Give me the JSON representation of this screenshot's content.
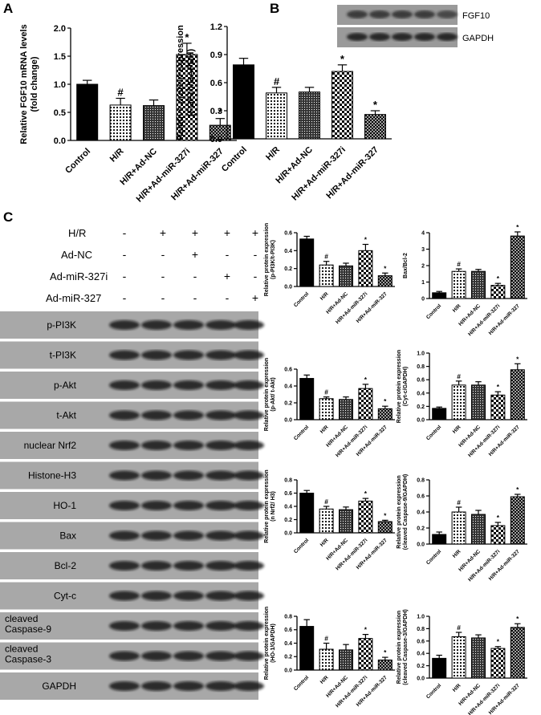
{
  "panel_labels": [
    "A",
    "B",
    "C"
  ],
  "blot_b": {
    "rows": [
      "FGF10",
      "GAPDH"
    ]
  },
  "blot_c": {
    "treatments": [
      {
        "name": "H/R",
        "signs": [
          "-",
          "+",
          "+",
          "+",
          "+"
        ]
      },
      {
        "name": "Ad-NC",
        "signs": [
          "-",
          "-",
          "+",
          "-",
          "-"
        ]
      },
      {
        "name": "Ad-miR-327i",
        "signs": [
          "-",
          "-",
          "-",
          "+",
          "-"
        ]
      },
      {
        "name": "Ad-miR-327",
        "signs": [
          "-",
          "-",
          "-",
          "-",
          "+"
        ]
      }
    ],
    "rows": [
      "p-PI3K",
      "t-PI3K",
      "p-Akt",
      "t-Akt",
      "nuclear Nrf2",
      "Histone-H3",
      "HO-1",
      "Bax",
      "Bcl-2",
      "Cyt-c",
      "cleaved\nCaspase-9",
      "cleaved\nCaspase-3",
      "GAPDH"
    ]
  },
  "chart_data": [
    {
      "type": "bar",
      "ylabel": [
        "Relative FGF10 mRNA levels",
        "(fold change)"
      ],
      "categories": [
        "Control",
        "H/R",
        "H/R+Ad-NC",
        "H/R+Ad-miR-327i",
        "H/R+Ad-miR-327"
      ],
      "values": [
        1.0,
        0.63,
        0.62,
        1.53,
        0.27
      ],
      "errors": [
        0.07,
        0.12,
        0.1,
        0.2,
        0.12
      ],
      "annotations": [
        null,
        "#",
        null,
        "*",
        "*"
      ],
      "fills": [
        "solid",
        "dots",
        "dense-dots",
        "grid",
        "dense-grid"
      ],
      "ylim": [
        0,
        2.0
      ],
      "yticks": [
        {
          "value": 0,
          "label": "0.0"
        },
        0.5,
        {
          "value": 1,
          "label": "1.0"
        },
        1.5,
        {
          "value": 2,
          "label": "2.0"
        }
      ]
    },
    {
      "type": "bar",
      "ylabel": [
        "Relative protein expression",
        "(FGF10/GAPDH)"
      ],
      "categories": [
        "Control",
        "H/R",
        "H/R+Ad-NC",
        "H/R+Ad-miR-327i",
        "H/R+Ad-miR-327"
      ],
      "values": [
        0.79,
        0.49,
        0.5,
        0.72,
        0.26
      ],
      "errors": [
        0.07,
        0.06,
        0.05,
        0.07,
        0.04
      ],
      "annotations": [
        null,
        "#",
        null,
        "*",
        "*"
      ],
      "fills": [
        "solid",
        "dots",
        "dense-dots",
        "grid",
        "dense-grid"
      ],
      "ylim": [
        0,
        1.2
      ],
      "yticks": [
        {
          "value": 0,
          "label": "0.0"
        },
        0.3,
        0.6,
        0.9,
        1.2
      ]
    },
    {
      "type": "bar",
      "ylabel": [
        "Relative protein expression",
        "(p-PI3K/t-PI3K)"
      ],
      "categories": [
        "Control",
        "H/R",
        "H/R+Ad-NC",
        "H/R+Ad-miR-327i",
        "H/R+Ad-miR-327"
      ],
      "values": [
        0.53,
        0.24,
        0.23,
        0.4,
        0.12
      ],
      "errors": [
        0.03,
        0.04,
        0.03,
        0.07,
        0.03
      ],
      "annotations": [
        null,
        "#",
        null,
        "*",
        "*"
      ],
      "fills": [
        "solid",
        "dots",
        "dense-dots",
        "grid",
        "dense-grid"
      ],
      "ylim": [
        0,
        0.6
      ],
      "yticks": [
        {
          "value": 0,
          "label": "0.0"
        },
        0.2,
        0.4,
        0.6
      ]
    },
    {
      "type": "bar",
      "ylabel": [
        "Bax/Bcl-2"
      ],
      "categories": [
        "Control",
        "H/R",
        "H/R+Ad-NC",
        "H/R+Ad-miR-327i",
        "H/R+Ad-miR-327"
      ],
      "values": [
        0.35,
        1.65,
        1.65,
        0.8,
        3.8
      ],
      "errors": [
        0.08,
        0.15,
        0.12,
        0.12,
        0.25
      ],
      "annotations": [
        null,
        "#",
        null,
        "*",
        "*"
      ],
      "fills": [
        "solid",
        "dots",
        "dense-dots",
        "grid",
        "dense-grid"
      ],
      "ylim": [
        0,
        4
      ],
      "yticks": [
        0,
        1,
        2,
        3,
        4
      ]
    },
    {
      "type": "bar",
      "ylabel": [
        "Relative protein expression",
        "(p-Akt/ t-Akt)"
      ],
      "categories": [
        "Control",
        "H/R",
        "H/R+Ad-NC",
        "H/R+Ad-miR-327i",
        "H/R+Ad-miR-327"
      ],
      "values": [
        0.49,
        0.25,
        0.24,
        0.37,
        0.13
      ],
      "errors": [
        0.04,
        0.02,
        0.03,
        0.05,
        0.03
      ],
      "annotations": [
        null,
        "#",
        null,
        "*",
        "*"
      ],
      "fills": [
        "solid",
        "dots",
        "dense-dots",
        "grid",
        "dense-grid"
      ],
      "ylim": [
        0,
        0.6
      ],
      "yticks": [
        {
          "value": 0,
          "label": "0.0"
        },
        0.2,
        0.4,
        0.6
      ]
    },
    {
      "type": "bar",
      "ylabel": [
        "Relative protein expression",
        "(Cyt-c/GAPDH)"
      ],
      "categories": [
        "Control",
        "H/R",
        "H/R+Ad-NC",
        "H/R+Ad-miR-327i",
        "H/R+Ad-miR-327"
      ],
      "values": [
        0.17,
        0.52,
        0.52,
        0.37,
        0.75
      ],
      "errors": [
        0.02,
        0.06,
        0.05,
        0.05,
        0.09
      ],
      "annotations": [
        null,
        "#",
        null,
        "*",
        "*"
      ],
      "fills": [
        "solid",
        "dots",
        "dense-dots",
        "grid",
        "dense-grid"
      ],
      "ylim": [
        0,
        1.0
      ],
      "yticks": [
        {
          "value": 0,
          "label": "0.0"
        },
        0.2,
        0.4,
        0.6,
        0.8,
        {
          "value": 1,
          "label": "1.0"
        }
      ]
    },
    {
      "type": "bar",
      "ylabel": [
        "Relative protein expression",
        "(n Nrf2/ H3)"
      ],
      "categories": [
        "Control",
        "H/R",
        "H/R+Ad-NC",
        "H/R+Ad-miR-327i",
        "H/R+Ad-miR-327"
      ],
      "values": [
        0.6,
        0.36,
        0.35,
        0.48,
        0.17
      ],
      "errors": [
        0.04,
        0.04,
        0.04,
        0.04,
        0.02
      ],
      "annotations": [
        null,
        "#",
        null,
        "*",
        "*"
      ],
      "fills": [
        "solid",
        "dots",
        "dense-dots",
        "grid",
        "dense-grid"
      ],
      "ylim": [
        0,
        0.8
      ],
      "yticks": [
        {
          "value": 0,
          "label": "0.0"
        },
        0.2,
        0.4,
        0.6,
        0.8
      ]
    },
    {
      "type": "bar",
      "ylabel": [
        "Relative protein expression",
        "(cleaved Caspase-9/GAPDH)"
      ],
      "categories": [
        "Control",
        "H/R",
        "H/R+Ad-NC",
        "H/R+Ad-miR-327i",
        "H/R+Ad-miR-327"
      ],
      "values": [
        0.12,
        0.4,
        0.37,
        0.23,
        0.59
      ],
      "errors": [
        0.03,
        0.06,
        0.05,
        0.04,
        0.03
      ],
      "annotations": [
        null,
        "#",
        null,
        "*",
        "*"
      ],
      "fills": [
        "solid",
        "dots",
        "dense-dots",
        "grid",
        "dense-grid"
      ],
      "ylim": [
        0,
        0.8
      ],
      "yticks": [
        {
          "value": 0,
          "label": "0.0"
        },
        0.2,
        0.4,
        0.6,
        0.8
      ]
    },
    {
      "type": "bar",
      "ylabel": [
        "Relative protein expression",
        "(HO-1/GAPDH)"
      ],
      "categories": [
        "Control",
        "H/R",
        "H/R+Ad-NC",
        "H/R+Ad-miR-327i",
        "H/R+Ad-miR-327"
      ],
      "values": [
        0.65,
        0.31,
        0.3,
        0.47,
        0.15
      ],
      "errors": [
        0.1,
        0.09,
        0.08,
        0.06,
        0.04
      ],
      "annotations": [
        null,
        "#",
        null,
        "*",
        "*"
      ],
      "fills": [
        "solid",
        "dots",
        "dense-dots",
        "grid",
        "dense-grid"
      ],
      "ylim": [
        0,
        0.8
      ],
      "yticks": [
        {
          "value": 0,
          "label": "0.0"
        },
        0.2,
        0.4,
        0.6,
        0.8
      ]
    },
    {
      "type": "bar",
      "ylabel": [
        "Relative protein expression",
        "(cleaved Caspase-3/GAPDH)"
      ],
      "categories": [
        "Control",
        "H/R",
        "H/R+Ad-NC",
        "H/R+Ad-miR-327i",
        "H/R+Ad-miR-327"
      ],
      "values": [
        0.32,
        0.67,
        0.65,
        0.48,
        0.82
      ],
      "errors": [
        0.05,
        0.07,
        0.05,
        0.03,
        0.06
      ],
      "annotations": [
        null,
        "#",
        null,
        "*",
        "*"
      ],
      "fills": [
        "solid",
        "dots",
        "dense-dots",
        "grid",
        "dense-grid"
      ],
      "ylim": [
        0,
        1.0
      ],
      "yticks": [
        {
          "value": 0,
          "label": "0.0"
        },
        0.2,
        0.4,
        0.6,
        0.8,
        {
          "value": 1,
          "label": "1.0"
        }
      ]
    }
  ]
}
